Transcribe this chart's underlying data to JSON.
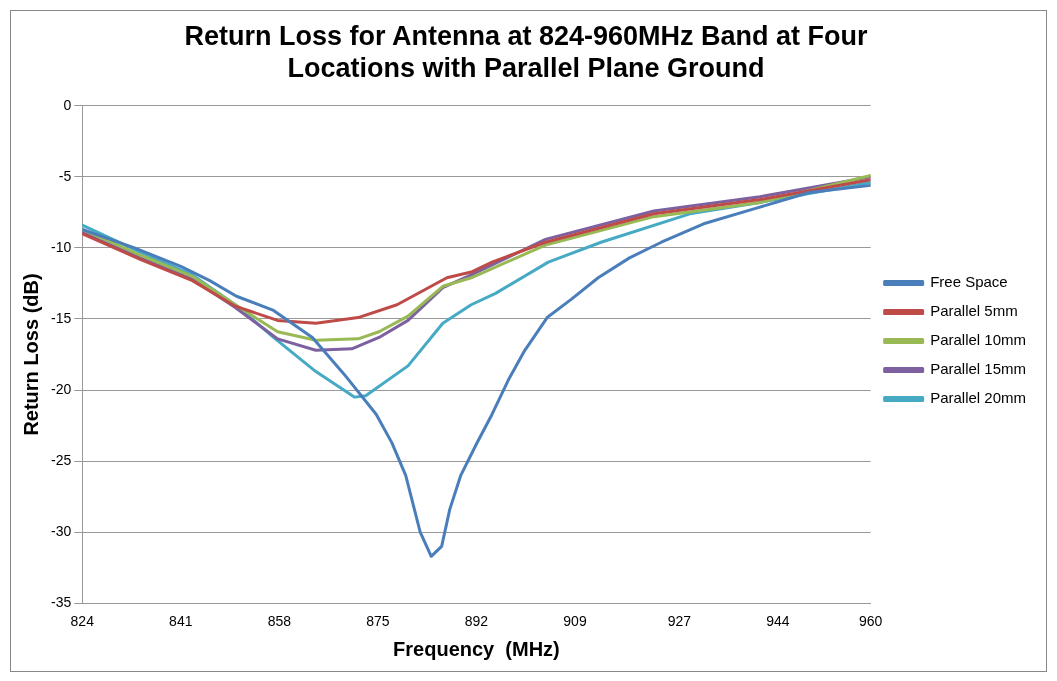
{
  "chart_data": {
    "type": "line",
    "title": "Return Loss for Antenna at 824-960MHz Band at Four Locations with Parallel Plane Ground",
    "xlabel": "Frequency  (MHz)",
    "ylabel": "Return Loss (dB)",
    "xlim": [
      824,
      960
    ],
    "xticks": [
      824,
      841,
      858,
      875,
      892,
      909,
      927,
      944,
      960
    ],
    "ylim": [
      -35,
      0
    ],
    "yticks": [
      -35,
      -30,
      -25,
      -20,
      -15,
      -10,
      -5,
      0
    ],
    "grid": "y",
    "legend": "right",
    "marker": "none",
    "line_style": "solid",
    "series": [
      {
        "name": "Free Space",
        "color": "#4a7ebb",
        "x": [
          824,
          833,
          841,
          846,
          850.6,
          857,
          863.7,
          869.2,
          874.7,
          877.4,
          879.8,
          882.3,
          884.2,
          886,
          887.4,
          889.3,
          892,
          894.7,
          897.5,
          900.2,
          904.2,
          908.4,
          913,
          918.4,
          923.9,
          931.2,
          940.3,
          949.4,
          960
        ],
        "values": [
          -8.7,
          -10,
          -11.3,
          -12.3,
          -13.4,
          -14.4,
          -16.3,
          -18.9,
          -21.7,
          -23.7,
          -26,
          -30,
          -31.7,
          -31,
          -28.4,
          -26,
          -23.8,
          -21.7,
          -19.3,
          -17.3,
          -14.9,
          -13.6,
          -12.1,
          -10.7,
          -9.6,
          -8.3,
          -7.2,
          -6.1,
          -5.6
        ]
      },
      {
        "name": "Parallel 5mm",
        "color": "#be4b48",
        "x": [
          824,
          834,
          843,
          850.4,
          857.7,
          864.3,
          871.6,
          878.3,
          886.9,
          891.1,
          894.7,
          903.9,
          922.6,
          940.9,
          960
        ],
        "values": [
          -9,
          -10.8,
          -12.3,
          -14.1,
          -15.1,
          -15.3,
          -14.9,
          -14,
          -12.1,
          -11.7,
          -11,
          -9.6,
          -7.6,
          -6.6,
          -5.2
        ]
      },
      {
        "name": "Parallel 10mm",
        "color": "#98b954",
        "x": [
          824,
          834,
          843,
          850.4,
          857.7,
          864.3,
          871.6,
          875.2,
          880.2,
          886.2,
          891.1,
          903.9,
          922.6,
          940.9,
          960
        ],
        "values": [
          -8.7,
          -10.5,
          -12,
          -14,
          -15.9,
          -16.5,
          -16.4,
          -15.9,
          -14.8,
          -12.7,
          -12.1,
          -9.8,
          -7.8,
          -6.8,
          -4.9
        ]
      },
      {
        "name": "Parallel 15mm",
        "color": "#7d60a0",
        "x": [
          824,
          834,
          843,
          850.4,
          857.7,
          864.3,
          870.5,
          875.2,
          880.2,
          886.2,
          891.1,
          903.9,
          922.6,
          940.9,
          960
        ],
        "values": [
          -8.9,
          -10.7,
          -12.2,
          -14.2,
          -16.4,
          -17.2,
          -17.1,
          -16.3,
          -15.1,
          -12.8,
          -11.9,
          -9.4,
          -7.4,
          -6.4,
          -5
        ]
      },
      {
        "name": "Parallel 20mm",
        "color": "#46aac5",
        "x": [
          824,
          834,
          843,
          850.4,
          857,
          864.3,
          871,
          872.9,
          880.2,
          886.2,
          891.1,
          895.3,
          904.4,
          913.5,
          928.8,
          940.9,
          960
        ],
        "values": [
          -8.4,
          -10.3,
          -11.9,
          -14,
          -16.3,
          -18.7,
          -20.5,
          -20.4,
          -18.3,
          -15.3,
          -14,
          -13.2,
          -11,
          -9.6,
          -7.6,
          -6.8,
          -5.4
        ]
      }
    ]
  }
}
